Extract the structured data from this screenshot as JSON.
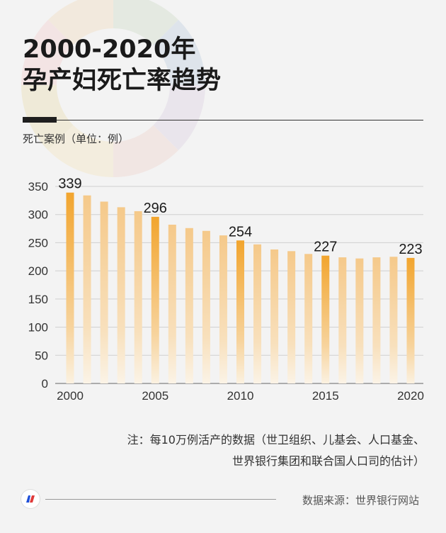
{
  "title_line1": "2000-2020年",
  "title_line2": "孕产妇死亡率趋势",
  "unit_label": "死亡案例（单位：例）",
  "note_line1": "注：每10万例活产的数据（世卫组织、儿基会、人口基金、",
  "note_line2": "世界银行集团和联合国人口司的估计）",
  "source": "数据来源：世界银行网站",
  "colors": {
    "highlight_bar": "#f2a52e",
    "normal_bar": "#f5cf98",
    "background": "#f3f3f3",
    "text": "#222222"
  },
  "chart_data": {
    "type": "bar",
    "categories": [
      "2000",
      "2001",
      "2002",
      "2003",
      "2004",
      "2005",
      "2006",
      "2007",
      "2008",
      "2009",
      "2010",
      "2011",
      "2012",
      "2013",
      "2014",
      "2015",
      "2016",
      "2017",
      "2018",
      "2019",
      "2020"
    ],
    "values": [
      339,
      334,
      323,
      313,
      306,
      296,
      282,
      276,
      271,
      263,
      254,
      247,
      238,
      235,
      230,
      227,
      224,
      222,
      224,
      225,
      223
    ],
    "highlighted": [
      "2000",
      "2005",
      "2010",
      "2015",
      "2020"
    ],
    "data_labels": {
      "2000": "339",
      "2005": "296",
      "2010": "254",
      "2015": "227",
      "2020": "223"
    },
    "x_tick_labels": [
      "2000",
      "2005",
      "2010",
      "2015",
      "2020"
    ],
    "y_ticks": [
      0,
      50,
      100,
      150,
      200,
      250,
      300,
      350
    ],
    "ylim": [
      0,
      350
    ],
    "grid": true
  }
}
